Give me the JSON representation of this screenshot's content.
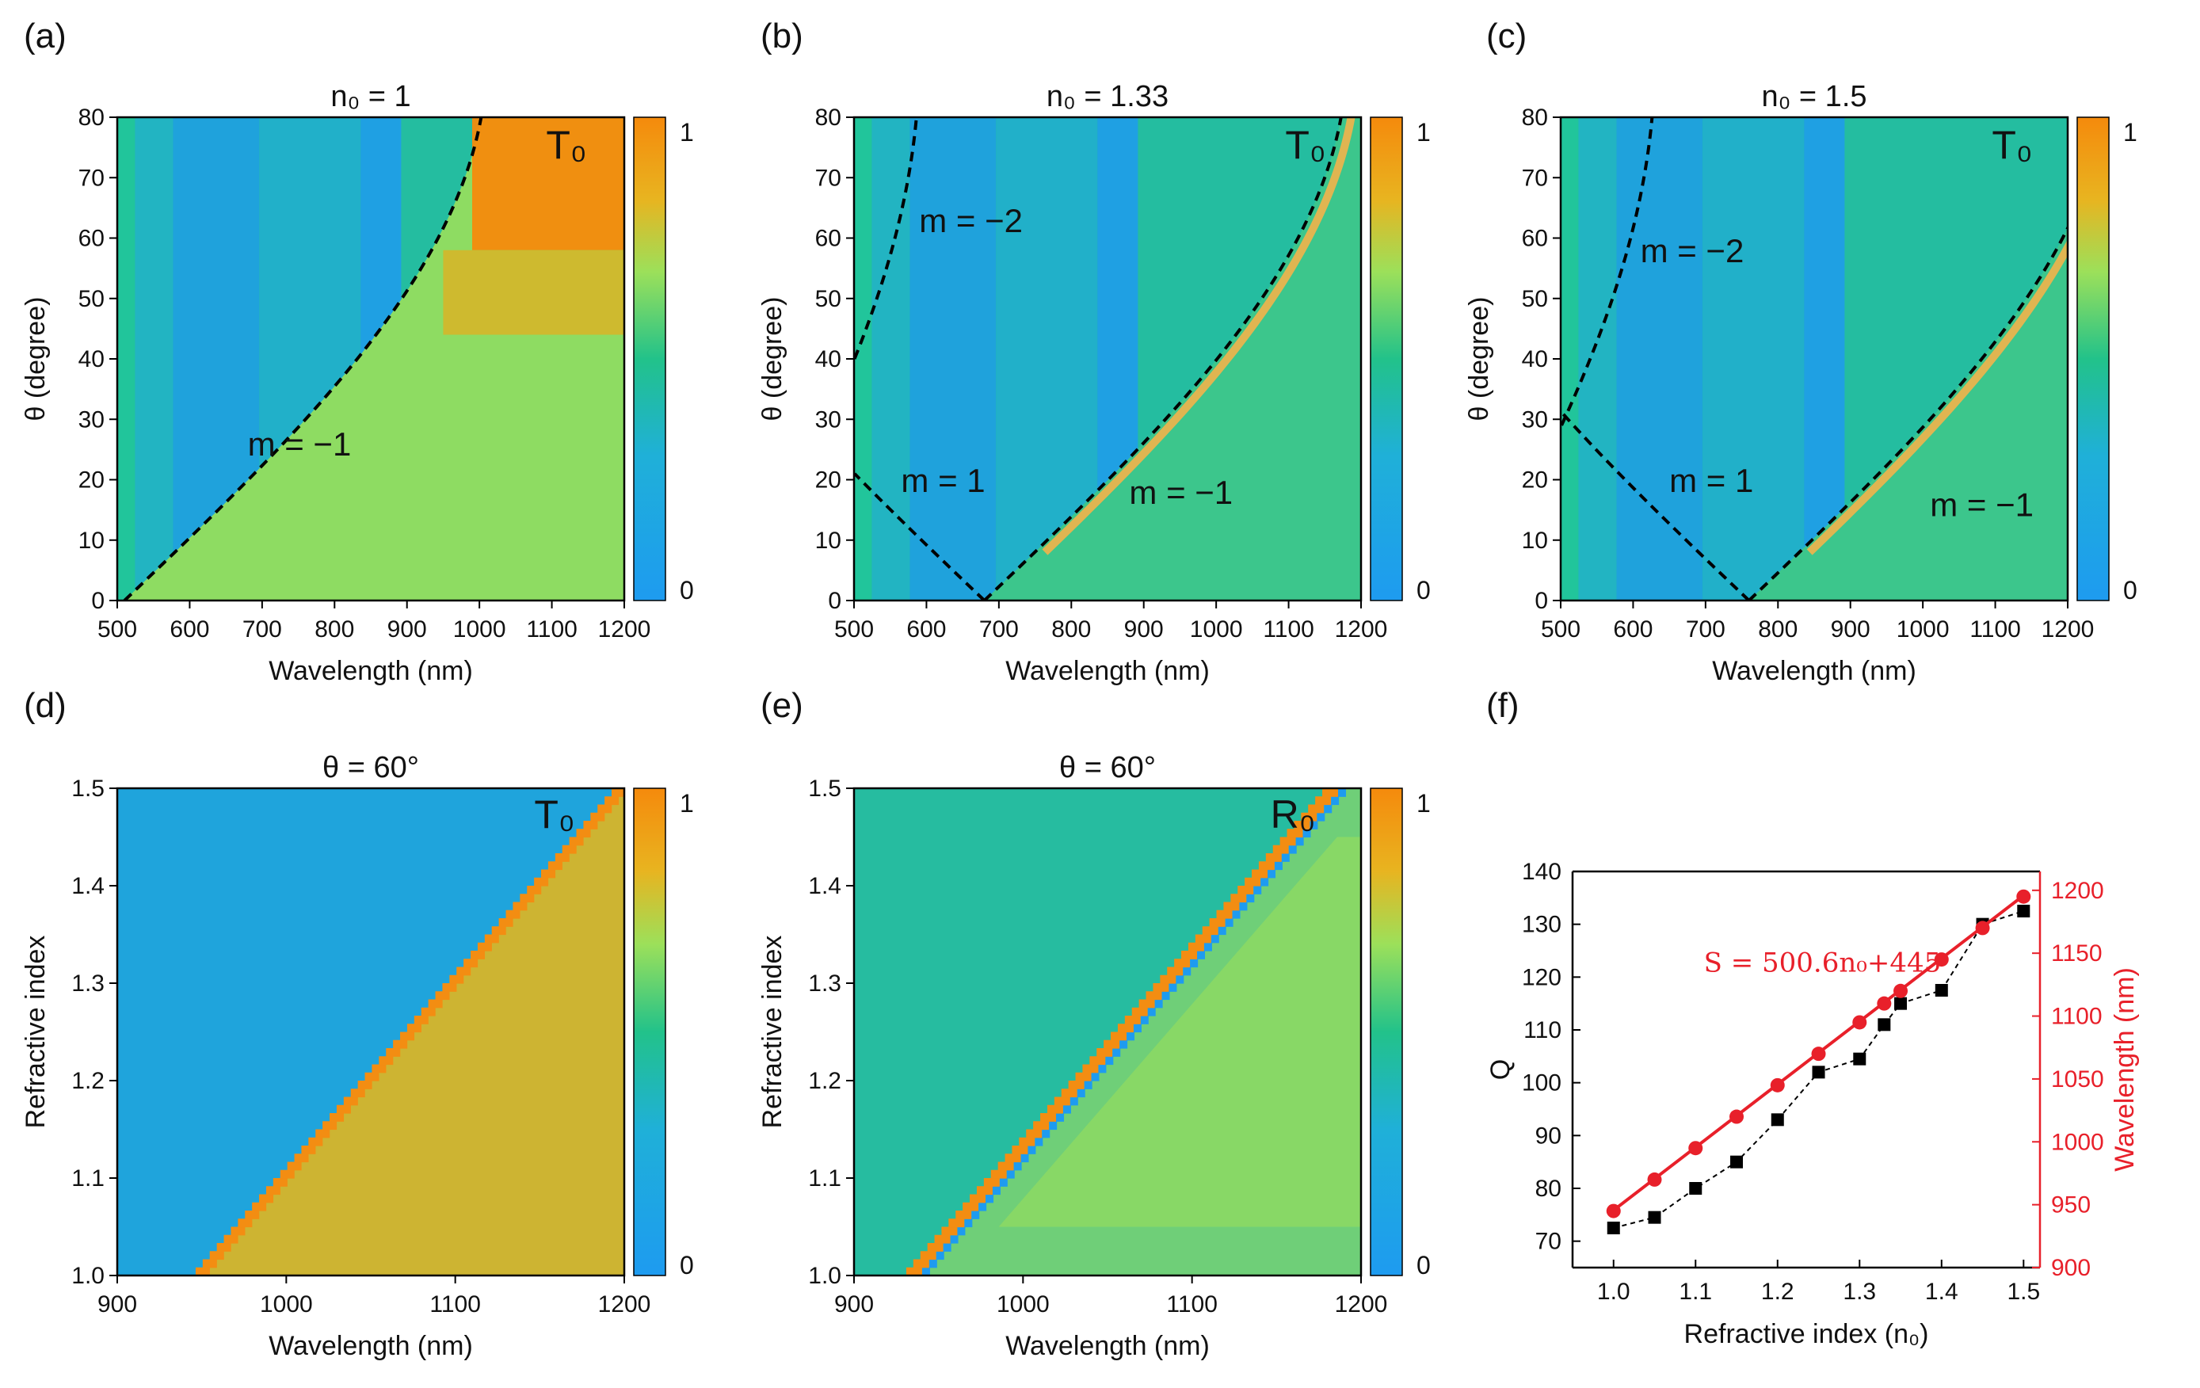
{
  "colors": {
    "low": "#1e9bf0",
    "mid": "#22c28a",
    "midhigh": "#9ce05a",
    "high": "#f58a0c",
    "dashed": "#000000",
    "q_series": "#000000",
    "wl_series": "#e8202a"
  },
  "chart_data": [
    {
      "type": "heatmap",
      "panel_label": "(a)",
      "title": "n₀ = 1",
      "corner_label": "T₀",
      "xlabel": "Wavelength (nm)",
      "ylabel": "θ (degree)",
      "xlim": [
        500,
        1200
      ],
      "ylim": [
        0,
        80
      ],
      "xticks": [
        500,
        600,
        700,
        800,
        900,
        1000,
        1100,
        1200
      ],
      "yticks": [
        0,
        10,
        20,
        30,
        40,
        50,
        60,
        70,
        80
      ],
      "colorbar": {
        "min": "0",
        "max": "1"
      },
      "n0": 1,
      "rayleigh_orders": [
        {
          "order": -1,
          "label": "m = −1",
          "label_at": [
            680,
            24
          ]
        }
      ]
    },
    {
      "type": "heatmap",
      "panel_label": "(b)",
      "title": "n₀ = 1.33",
      "corner_label": "T₀",
      "xlabel": "Wavelength (nm)",
      "ylabel": "θ (degree)",
      "xlim": [
        500,
        1200
      ],
      "ylim": [
        0,
        80
      ],
      "xticks": [
        500,
        600,
        700,
        800,
        900,
        1000,
        1100,
        1200
      ],
      "yticks": [
        0,
        10,
        20,
        30,
        40,
        50,
        60,
        70,
        80
      ],
      "colorbar": {
        "min": "0",
        "max": "1"
      },
      "n0": 1.33,
      "rayleigh_orders": [
        {
          "order": -2,
          "label": "m = −2",
          "label_at": [
            590,
            61
          ]
        },
        {
          "order": 1,
          "label": "m = 1",
          "label_at": [
            565,
            18
          ]
        },
        {
          "order": -1,
          "label": "m = −1",
          "label_at": [
            880,
            16
          ]
        }
      ]
    },
    {
      "type": "heatmap",
      "panel_label": "(c)",
      "title": "n₀ = 1.5",
      "corner_label": "T₀",
      "xlabel": "Wavelength (nm)",
      "ylabel": "θ (degree)",
      "xlim": [
        500,
        1200
      ],
      "ylim": [
        0,
        80
      ],
      "xticks": [
        500,
        600,
        700,
        800,
        900,
        1000,
        1100,
        1200
      ],
      "yticks": [
        0,
        10,
        20,
        30,
        40,
        50,
        60,
        70,
        80
      ],
      "colorbar": {
        "min": "0",
        "max": "1"
      },
      "n0": 1.5,
      "rayleigh_orders": [
        {
          "order": -2,
          "label": "m = −2",
          "label_at": [
            610,
            56
          ]
        },
        {
          "order": 1,
          "label": "m = 1",
          "label_at": [
            650,
            18
          ]
        },
        {
          "order": -1,
          "label": "m = −1",
          "label_at": [
            1010,
            14
          ]
        }
      ]
    },
    {
      "type": "heatmap",
      "panel_label": "(d)",
      "title": "θ = 60°",
      "corner_label": "T₀",
      "xlabel": "Wavelength (nm)",
      "ylabel": "Refractive index",
      "xlim": [
        900,
        1200
      ],
      "ylim": [
        1.0,
        1.5
      ],
      "xticks": [
        900,
        1000,
        1100,
        1200
      ],
      "yticks": [
        1.0,
        1.1,
        1.2,
        1.3,
        1.4,
        1.5
      ],
      "colorbar": {
        "min": "0",
        "max": "1"
      },
      "quantity": "T0"
    },
    {
      "type": "heatmap",
      "panel_label": "(e)",
      "title": "θ = 60°",
      "corner_label": "R₀",
      "xlabel": "Wavelength (nm)",
      "ylabel": "Refractive index",
      "xlim": [
        900,
        1200
      ],
      "ylim": [
        1.0,
        1.5
      ],
      "xticks": [
        900,
        1000,
        1100,
        1200
      ],
      "yticks": [
        1.0,
        1.1,
        1.2,
        1.3,
        1.4,
        1.5
      ],
      "colorbar": {
        "min": "0",
        "max": "1"
      },
      "quantity": "R0"
    },
    {
      "type": "line",
      "panel_label": "(f)",
      "xlabel": "Refractive index (n₀)",
      "ylabel": "Q",
      "ylabel_right": "Wavelength (nm)",
      "xlim": [
        0.95,
        1.52
      ],
      "ylim": [
        65,
        140
      ],
      "ylim_right": [
        900,
        1215
      ],
      "xticks": [
        1.0,
        1.1,
        1.2,
        1.3,
        1.4,
        1.5
      ],
      "yticks": [
        70,
        80,
        90,
        100,
        110,
        120,
        130,
        140
      ],
      "yticks_right": [
        900,
        950,
        1000,
        1050,
        1100,
        1150,
        1200
      ],
      "annotation": "S = 500.6n₀+445",
      "series": [
        {
          "name": "Q",
          "axis": "left",
          "marker": "square",
          "x": [
            1.0,
            1.05,
            1.1,
            1.15,
            1.2,
            1.25,
            1.3,
            1.33,
            1.35,
            1.4,
            1.45,
            1.5
          ],
          "y": [
            72.5,
            74.5,
            80,
            85,
            93,
            102,
            104.5,
            111,
            115,
            117.5,
            130,
            132.5
          ]
        },
        {
          "name": "Wavelength",
          "axis": "right",
          "marker": "circle",
          "x": [
            1.0,
            1.05,
            1.1,
            1.15,
            1.2,
            1.25,
            1.3,
            1.33,
            1.35,
            1.4,
            1.45,
            1.5
          ],
          "y": [
            945,
            970,
            995,
            1020,
            1045,
            1070,
            1095,
            1110,
            1120,
            1145,
            1170,
            1195
          ]
        },
        {
          "name": "Linear fit",
          "axis": "right",
          "style": "line",
          "slope": 500.6,
          "intercept": 445
        }
      ]
    }
  ]
}
